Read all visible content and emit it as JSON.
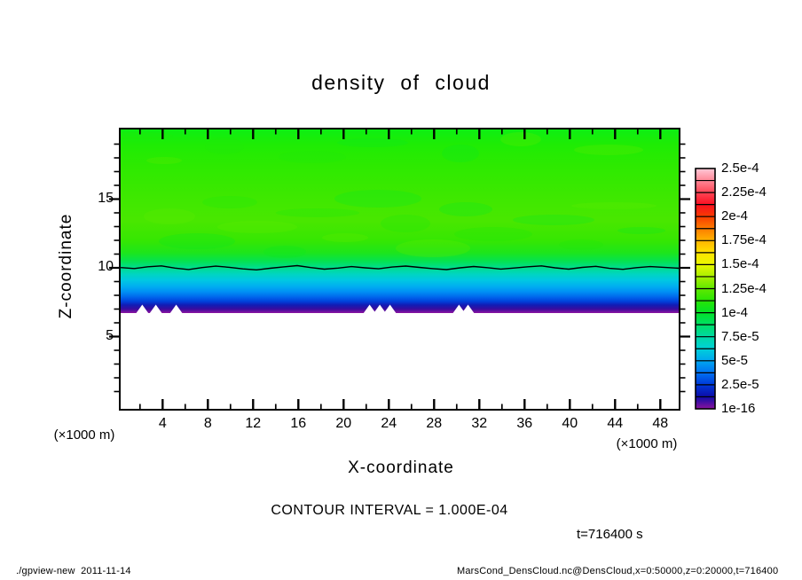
{
  "title": "density of cloud",
  "y_axis": {
    "label": "Z-coordinate",
    "unit": "(×1000 m)",
    "tick_labels": [
      "5",
      "10",
      "15"
    ],
    "tick_values": [
      5,
      10,
      15
    ]
  },
  "x_axis": {
    "label": "X-coordinate",
    "unit": "(×1000 m)",
    "tick_labels": [
      "4",
      "8",
      "12",
      "16",
      "20",
      "24",
      "28",
      "32",
      "36",
      "40",
      "44",
      "48"
    ],
    "tick_values": [
      4,
      8,
      12,
      16,
      20,
      24,
      28,
      32,
      36,
      40,
      44,
      48
    ]
  },
  "colorbar": {
    "tick_labels": [
      "2.5e-4",
      "2.25e-4",
      "2e-4",
      "1.75e-4",
      "1.5e-4",
      "1.25e-4",
      "1e-4",
      "7.5e-5",
      "5e-5",
      "2.5e-5",
      "1e-16"
    ],
    "gradient_stops": [
      "#ffc8d7",
      "#ff8897",
      "#ff4656",
      "#fb1021",
      "#f83c00",
      "#fc7c00",
      "#ffb400",
      "#ffe200",
      "#e8f800",
      "#a8f000",
      "#60e800",
      "#28e505",
      "#02e228",
      "#00df66",
      "#00d9a4",
      "#00d0d8",
      "#00a6f0",
      "#0072f2",
      "#0038d8",
      "#0d0ca8",
      "#8c129c"
    ]
  },
  "notes": {
    "contour_interval": "CONTOUR INTERVAL = 1.000E-04",
    "time": "t=716400 s"
  },
  "footer": {
    "left": "./gpview-new  2011-11-14",
    "right": "MarsCond_DensCloud.nc@DensCloud,x=0:50000,z=0:20000,t=716400"
  },
  "chart_data": {
    "type": "heatmap",
    "title": "density of cloud",
    "xlabel": "X-coordinate (×1000 m)",
    "ylabel": "Z-coordinate (×1000 m)",
    "x_range": [
      0,
      50
    ],
    "z_range": [
      0,
      20
    ],
    "x_major_ticks": [
      4,
      8,
      12,
      16,
      20,
      24,
      28,
      32,
      36,
      40,
      44,
      48
    ],
    "x_minor_step": 2,
    "z_major_ticks": [
      5,
      10,
      15
    ],
    "z_minor_step": 1,
    "color_levels": [
      "1e-16",
      "2.5e-5",
      "5e-5",
      "7.5e-5",
      "1e-4",
      "1.25e-4",
      "1.5e-4",
      "1.75e-4",
      "2e-4",
      "2.25e-4",
      "2.5e-4"
    ],
    "contour_interval": "1.000E-04",
    "time": "t=716400 s",
    "field_description": "Horizontally quasi-uniform cloud density: zero (white) below z≈7, sharp rise through purple/blue/cyan between z≈7 and 10, green plateau of ≈1.3e-4 to 1.6e-4 from z≈10.5 up to 20; one black contour line (level 1e-4) at z≈10.",
    "cloud_base_z_km": 7.0,
    "cloud_base_gaps_x_km": [
      2.2,
      3.4,
      5.2,
      22.3,
      23.2,
      24.1,
      30.2,
      31.0
    ],
    "vertical_profile": {
      "z_km": [
        0,
        6.9,
        7.0,
        7.3,
        7.8,
        8.3,
        8.9,
        9.5,
        10.0,
        10.7,
        11.5,
        12.5,
        14.0,
        16.0,
        18.0,
        20.0
      ],
      "density": [
        0,
        0,
        1e-16,
        2.5e-05,
        5e-05,
        6.5e-05,
        7.5e-05,
        9e-05,
        0.0001,
        0.000115,
        0.00013,
        0.00014,
        0.00015,
        0.00015,
        0.00014,
        0.00013
      ]
    },
    "contour_line": {
      "level": 0.0001,
      "x_km": [
        0.3,
        1.5,
        2.7,
        3.9,
        5.1,
        6.3,
        7.5,
        8.7,
        9.9,
        11.1,
        12.3,
        13.5,
        14.7,
        15.9,
        17.1,
        18.3,
        19.5,
        20.7,
        21.9,
        23.1,
        24.3,
        25.5,
        26.7,
        27.9,
        29.1,
        30.3,
        31.5,
        32.7,
        33.9,
        35.1,
        36.3,
        37.5,
        38.7,
        39.9,
        41.1,
        42.3,
        43.5,
        44.7,
        45.9,
        47.1,
        48.3,
        49.7
      ],
      "z_km": [
        10.02,
        9.95,
        10.08,
        10.14,
        9.98,
        9.88,
        10.02,
        10.12,
        10.04,
        9.92,
        9.85,
        9.97,
        10.07,
        10.16,
        10.02,
        9.9,
        9.98,
        10.09,
        10.0,
        9.93,
        10.06,
        10.13,
        10.03,
        9.94,
        9.87,
        10.0,
        10.1,
        10.01,
        9.91,
        9.99,
        10.08,
        10.14,
        10.0,
        9.9,
        10.03,
        10.11,
        9.96,
        9.89,
        10.01,
        10.09,
        10.04,
        9.97
      ]
    },
    "field_gradient": [
      {
        "z": 20.13,
        "c": "#0cef14"
      },
      {
        "z": 19.0,
        "c": "#1eec04"
      },
      {
        "z": 17.3,
        "c": "#2eea00"
      },
      {
        "z": 15.0,
        "c": "#3fe800"
      },
      {
        "z": 13.4,
        "c": "#49e700"
      },
      {
        "z": 12.0,
        "c": "#36e702"
      },
      {
        "z": 11.1,
        "c": "#1de51b"
      },
      {
        "z": 10.5,
        "c": "#05e24e"
      },
      {
        "z": 10.0,
        "c": "#00dd8e"
      },
      {
        "z": 9.55,
        "c": "#00d5c0"
      },
      {
        "z": 9.1,
        "c": "#00c8e2"
      },
      {
        "z": 8.65,
        "c": "#00aef0"
      },
      {
        "z": 8.26,
        "c": "#0090f4"
      },
      {
        "z": 7.87,
        "c": "#0066ec"
      },
      {
        "z": 7.55,
        "c": "#0040da"
      },
      {
        "z": 7.29,
        "c": "#121cb4"
      },
      {
        "z": 7.0,
        "c": "#3a0c9e"
      },
      {
        "z": 6.7,
        "c": "#8e14a0"
      }
    ]
  }
}
